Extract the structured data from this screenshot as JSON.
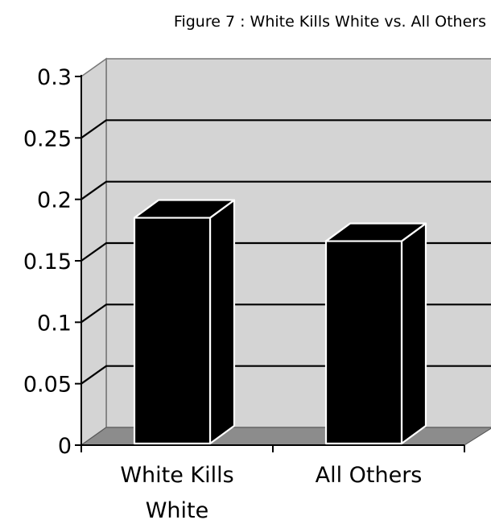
{
  "chart_data": {
    "type": "bar",
    "title": "Figure 7 : White Kills White vs. All Others",
    "categories": [
      "White Kills White",
      "All Others"
    ],
    "category_lines": [
      [
        "White Kills",
        "White"
      ],
      [
        "All Others"
      ]
    ],
    "values": [
      0.185,
      0.166
    ],
    "ylim": [
      0,
      0.3
    ],
    "yticks": [
      0,
      0.05,
      0.1,
      0.15,
      0.2,
      0.25,
      0.3
    ],
    "ytick_labels": [
      "0",
      "0.05",
      "0.1",
      "0.15",
      "0.2",
      "0.25",
      "0.3"
    ],
    "grid": true,
    "style": "3d-column",
    "colors": {
      "bar": "#000000",
      "bar_edge": "#ffffff",
      "back_wall": "#d4d4d4",
      "floor": "#8c8c8c",
      "axis": "#000000"
    }
  }
}
